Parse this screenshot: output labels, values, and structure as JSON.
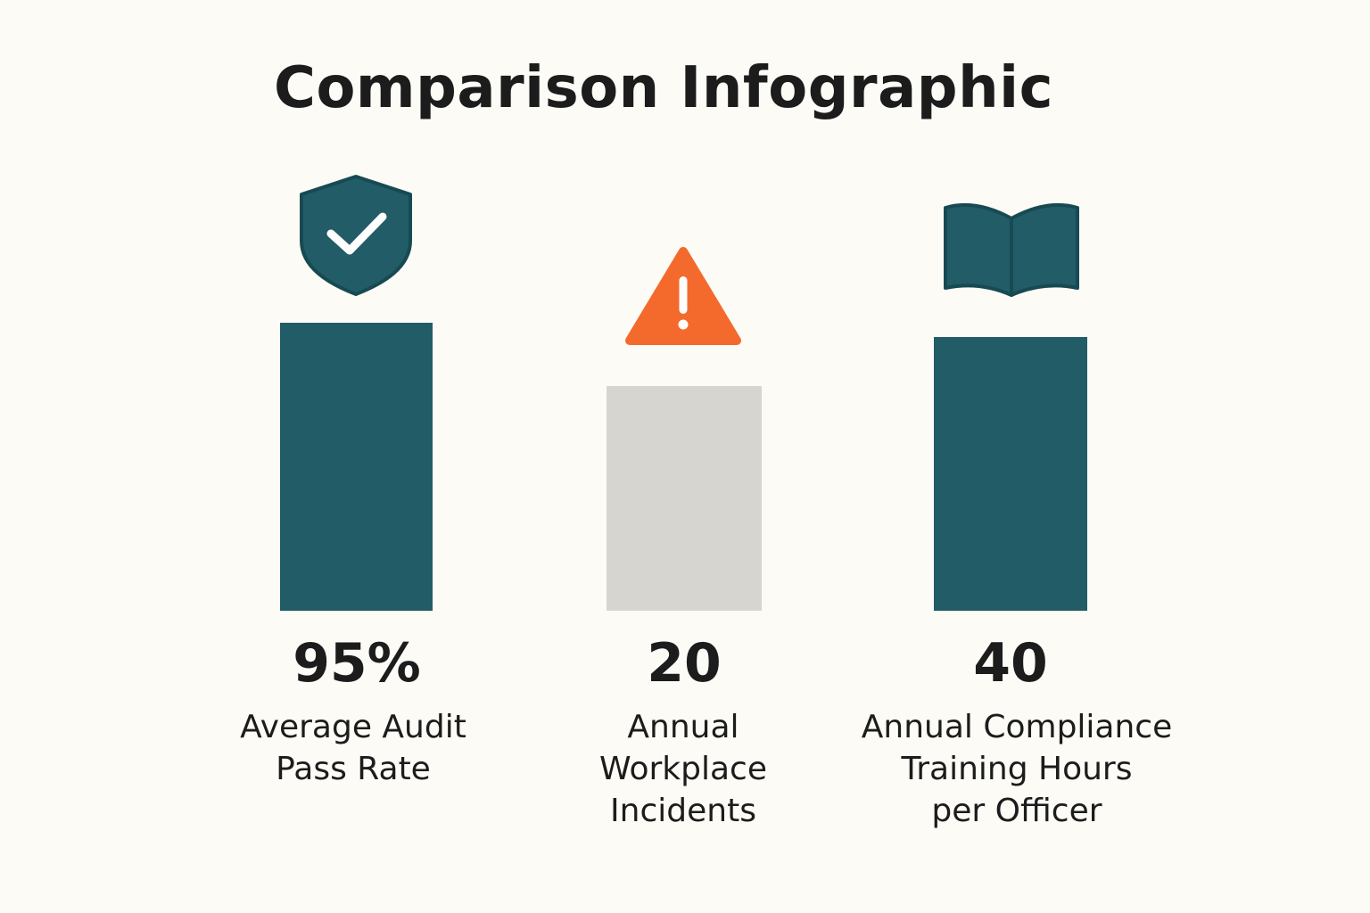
{
  "title": "Comparison Infographic",
  "colors": {
    "background": "#fcfbf6",
    "teal": "#225c66",
    "gray": "#d6d5d0",
    "warning": "#f46a2d",
    "text": "#1c1c1c"
  },
  "chart_data": {
    "type": "bar",
    "title": "Comparison Infographic",
    "categories": [
      "Average Audit\nPass Rate",
      "Annual\nWorkplace\nIncidents",
      "Annual Compliance\nTraining Hours\nper Officer"
    ],
    "values": [
      95,
      20,
      40
    ],
    "value_labels": [
      "95%",
      "20",
      "40"
    ],
    "icons": [
      "shield-check-icon",
      "warning-icon",
      "book-icon"
    ],
    "bar_colors": [
      "#225c66",
      "#d6d5d0",
      "#225c66"
    ],
    "grid": false,
    "legend": "none"
  }
}
